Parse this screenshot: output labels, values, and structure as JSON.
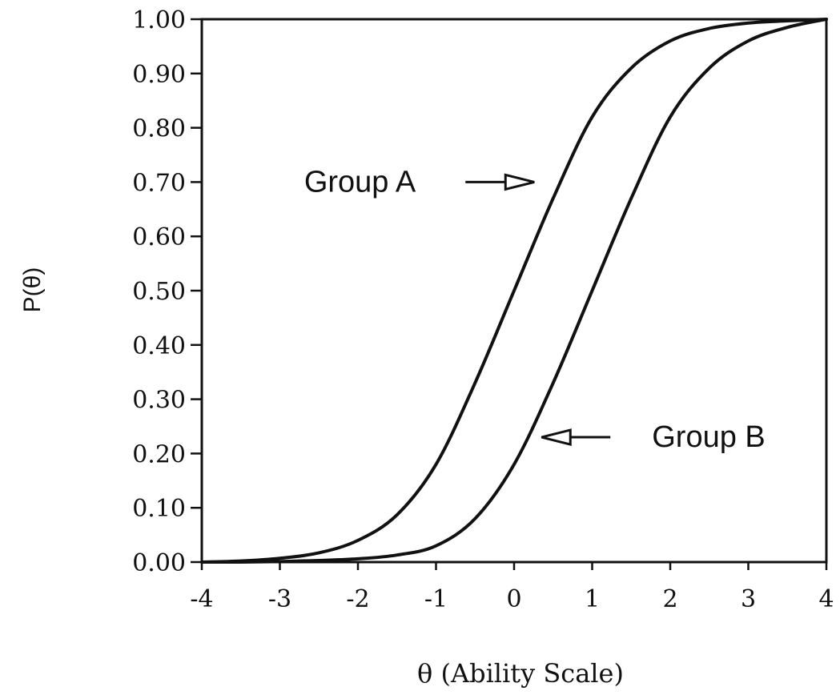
{
  "chart_data": {
    "type": "line",
    "title": "",
    "xlabel": "θ  (Ability Scale)",
    "ylabel": "P(θ)",
    "xlim": [
      -4,
      4
    ],
    "ylim": [
      0,
      1
    ],
    "grid": false,
    "line_color": "#111111",
    "x_ticks": [
      {
        "value": -4,
        "label": "-4"
      },
      {
        "value": -3,
        "label": "-3"
      },
      {
        "value": -2,
        "label": "-2"
      },
      {
        "value": -1,
        "label": "-1"
      },
      {
        "value": 0,
        "label": "0"
      },
      {
        "value": 1,
        "label": "1"
      },
      {
        "value": 2,
        "label": "2"
      },
      {
        "value": 3,
        "label": "3"
      },
      {
        "value": 4,
        "label": "4"
      }
    ],
    "y_ticks": [
      {
        "value": 0.0,
        "label": "0.00"
      },
      {
        "value": 0.1,
        "label": "0.10"
      },
      {
        "value": 0.2,
        "label": "0.20"
      },
      {
        "value": 0.3,
        "label": "0.30"
      },
      {
        "value": 0.4,
        "label": "0.40"
      },
      {
        "value": 0.5,
        "label": "0.50"
      },
      {
        "value": 0.6,
        "label": "0.60"
      },
      {
        "value": 0.7,
        "label": "0.70"
      },
      {
        "value": 0.8,
        "label": "0.80"
      },
      {
        "value": 0.9,
        "label": "0.90"
      },
      {
        "value": 1.0,
        "label": "1.00"
      }
    ],
    "x": [
      -4,
      -3.5,
      -3,
      -2.5,
      -2,
      -1.5,
      -1,
      -0.5,
      0,
      0.5,
      1,
      1.5,
      2,
      2.5,
      3,
      3.5,
      4
    ],
    "series": [
      {
        "name": "Group A",
        "values": [
          0.0,
          0.002,
          0.007,
          0.017,
          0.04,
          0.087,
          0.18,
          0.33,
          0.5,
          0.67,
          0.82,
          0.91,
          0.96,
          0.983,
          0.993,
          0.997,
          1.0
        ]
      },
      {
        "name": "Group B",
        "values": [
          0.0,
          0.0,
          0.001,
          0.003,
          0.006,
          0.013,
          0.03,
          0.08,
          0.18,
          0.33,
          0.5,
          0.67,
          0.82,
          0.91,
          0.96,
          0.985,
          1.0
        ]
      }
    ],
    "annotations": [
      {
        "text": "Group A",
        "series": "Group A",
        "x": 0.3,
        "y": 0.7,
        "arrow_direction": "right"
      },
      {
        "text": "Group B",
        "series": "Group B",
        "x": 0.3,
        "y": 0.23,
        "arrow_direction": "left"
      }
    ]
  }
}
